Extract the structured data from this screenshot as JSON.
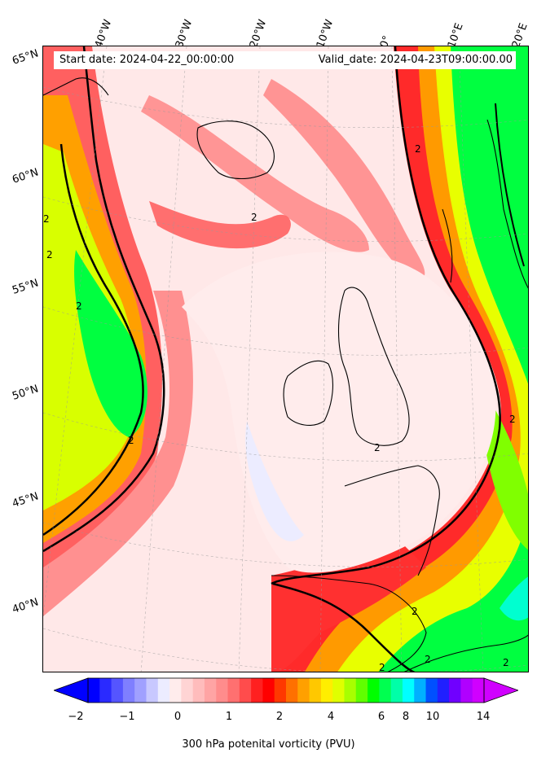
{
  "map": {
    "header": {
      "start_date": "Start date: 2024-04-22_00:00:00",
      "valid_date": "Valid_date: 2024-04-23T09:00:00.00"
    },
    "longitude_labels": [
      "40°W",
      "30°W",
      "20°W",
      "10°W",
      "0°",
      "10°E",
      "20°E"
    ],
    "latitude_labels": [
      "65°N",
      "60°N",
      "55°N",
      "50°N",
      "45°N",
      "40°N"
    ],
    "contour_labels": [
      "2",
      "2",
      "2",
      "2",
      "2",
      "2",
      "2",
      "2",
      "2",
      "2",
      "2",
      "2"
    ],
    "projection": "conic",
    "grid": "dashed gray"
  },
  "colorbar": {
    "label": "300 hPa potenital vorticity (PVU)",
    "tick_labels": [
      "−2",
      "−1",
      "0",
      "1",
      "2",
      "4",
      "6",
      "8",
      "10",
      "14"
    ],
    "extend": "both",
    "colors": [
      "#0000ff",
      "#2a2aff",
      "#5555ff",
      "#7f7fff",
      "#a0a0ff",
      "#c8c8ff",
      "#ececff",
      "#ffecec",
      "#ffd4d4",
      "#ffbcbc",
      "#ffa4a4",
      "#ff8c8c",
      "#ff7070",
      "#ff4c4c",
      "#ff2020",
      "#ff0000",
      "#ff3800",
      "#ff7000",
      "#ffa000",
      "#ffc800",
      "#ffee00",
      "#e0ff00",
      "#a8ff00",
      "#60ff00",
      "#00ff00",
      "#00ff50",
      "#00ffa8",
      "#00ffff",
      "#00b0ff",
      "#0050ff",
      "#2020ff",
      "#7000ff",
      "#b000ff",
      "#d000ff"
    ]
  },
  "chart_data": {
    "type": "heatmap",
    "variable": "300 hPa potenital vorticity (PVU)",
    "colorbar_ticks": [
      -2,
      -1,
      0,
      1,
      2,
      4,
      6,
      8,
      10,
      14
    ],
    "contour_level": 2
  }
}
